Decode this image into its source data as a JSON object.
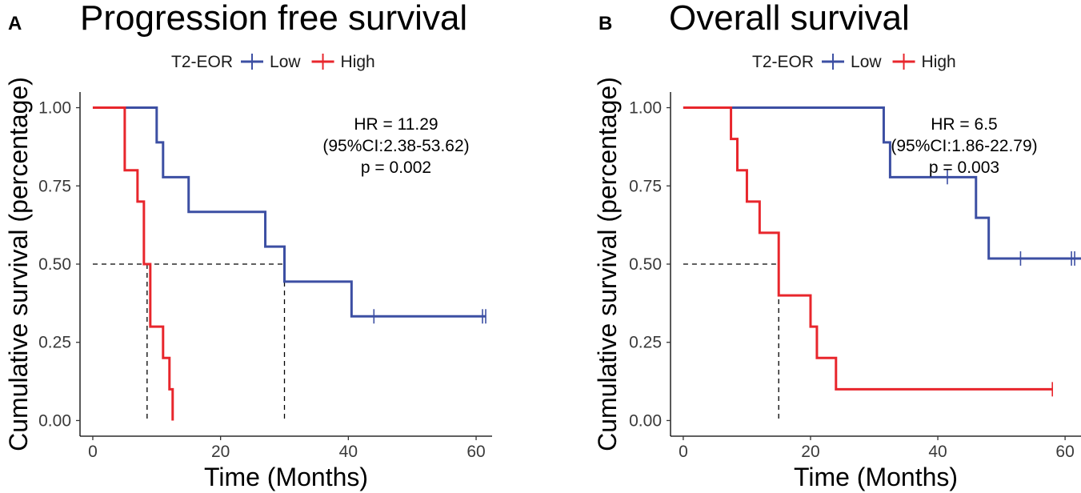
{
  "chart_data": [
    {
      "type": "line",
      "panel_label": "A",
      "title": "Progression free survival",
      "xlabel": "Time (Months)",
      "ylabel": "Cumulative survival (percentage)",
      "xlim": [
        -2,
        62.5
      ],
      "ylim": [
        -0.05,
        1.05
      ],
      "xticks": [
        0,
        20,
        40,
        60
      ],
      "yticks": [
        0.0,
        0.25,
        0.5,
        0.75,
        1.0
      ],
      "xtick_labels": [
        "0",
        "20",
        "40",
        "60"
      ],
      "ytick_labels": [
        "0.00",
        "0.25",
        "0.50",
        "0.75",
        "1.00"
      ],
      "legend": {
        "title": "T2-EOR",
        "placement": "top"
      },
      "annotation": [
        "HR = 11.29",
        "(95%CI:2.38-53.62)",
        "p = 0.002"
      ],
      "median_lines": [
        8.5,
        30
      ],
      "series": [
        {
          "name": "Low",
          "color": "#3c4fa3",
          "steps": [
            [
              0,
              1.0
            ],
            [
              10,
              0.889
            ],
            [
              11,
              0.778
            ],
            [
              15,
              0.667
            ],
            [
              27,
              0.556
            ],
            [
              30,
              0.444
            ],
            [
              40.5,
              0.333
            ],
            [
              61.5,
              0.333
            ]
          ],
          "censors": [
            [
              44,
              0.333
            ],
            [
              61,
              0.333
            ],
            [
              61.5,
              0.333
            ]
          ]
        },
        {
          "name": "High",
          "color": "#e8262c",
          "steps": [
            [
              0,
              1.0
            ],
            [
              5,
              0.8
            ],
            [
              7,
              0.7
            ],
            [
              8,
              0.5
            ],
            [
              9,
              0.3
            ],
            [
              11,
              0.2
            ],
            [
              12,
              0.1
            ],
            [
              12.5,
              0.0
            ]
          ],
          "censors": []
        }
      ]
    },
    {
      "type": "line",
      "panel_label": "B",
      "title": "Overall survival",
      "xlabel": "Time (Months)",
      "ylabel": "Cumulative survival (percentage)",
      "xlim": [
        -2,
        62.5
      ],
      "ylim": [
        -0.05,
        1.05
      ],
      "xticks": [
        0,
        20,
        40,
        60
      ],
      "yticks": [
        0.0,
        0.25,
        0.5,
        0.75,
        1.0
      ],
      "xtick_labels": [
        "0",
        "20",
        "40",
        "60"
      ],
      "ytick_labels": [
        "0.00",
        "0.25",
        "0.50",
        "0.75",
        "1.00"
      ],
      "legend": {
        "title": "T2-EOR",
        "placement": "top"
      },
      "annotation": [
        "HR = 6.5",
        "(95%CI:1.86-22.79)",
        "p = 0.003"
      ],
      "median_lines": [
        15
      ],
      "series": [
        {
          "name": "Low",
          "color": "#3c4fa3",
          "steps": [
            [
              0,
              1.0
            ],
            [
              31.5,
              0.889
            ],
            [
              32.5,
              0.778
            ],
            [
              46,
              0.648
            ],
            [
              48,
              0.518
            ],
            [
              62.5,
              0.518
            ]
          ],
          "censors": [
            [
              41.5,
              0.778
            ],
            [
              53,
              0.518
            ],
            [
              61,
              0.518
            ],
            [
              61.5,
              0.518
            ]
          ]
        },
        {
          "name": "High",
          "color": "#e8262c",
          "steps": [
            [
              0,
              1.0
            ],
            [
              7.5,
              0.9
            ],
            [
              8.5,
              0.8
            ],
            [
              10,
              0.7
            ],
            [
              12,
              0.6
            ],
            [
              15,
              0.4
            ],
            [
              20,
              0.3
            ],
            [
              21,
              0.2
            ],
            [
              24,
              0.1
            ],
            [
              58,
              0.1
            ]
          ],
          "censors": [
            [
              58,
              0.1
            ]
          ]
        }
      ]
    }
  ]
}
